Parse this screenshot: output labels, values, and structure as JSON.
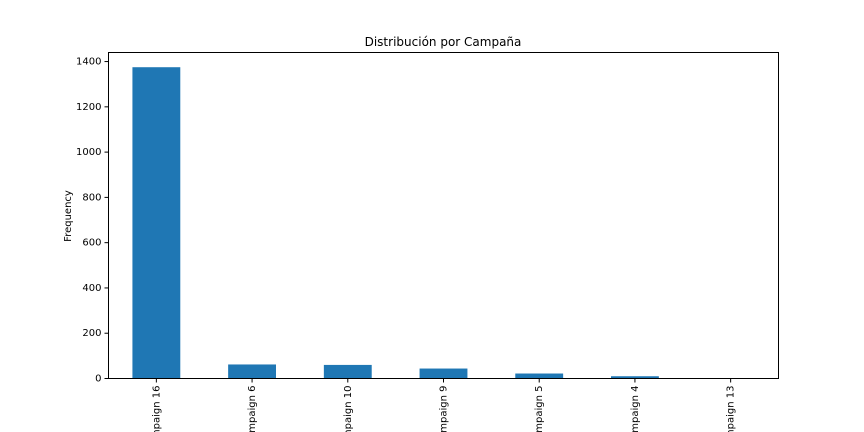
{
  "chart_data": {
    "type": "bar",
    "title": "Distribución por Campaña",
    "xlabel": "",
    "ylabel": "Frequency",
    "categories": [
      "mpaign 16",
      "mpaign 6",
      "npaign 10",
      "mpaign 9",
      "mpaign 5",
      "mpaign 4",
      "mpaign 13"
    ],
    "values": [
      1375,
      62,
      60,
      44,
      22,
      10,
      2
    ],
    "ylim": [
      0,
      1440
    ],
    "yticks": [
      0,
      200,
      400,
      600,
      800,
      1000,
      1200,
      1400
    ],
    "bar_color": "#1f77b4",
    "grid": false,
    "legend": "none"
  }
}
